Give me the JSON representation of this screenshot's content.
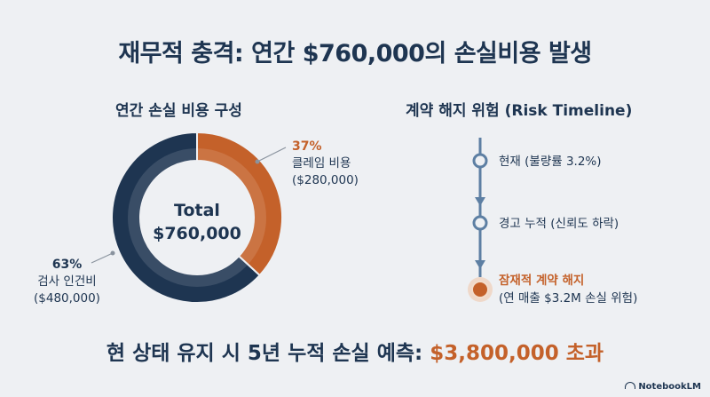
{
  "title": "재무적 충격: 연간 $760,000의 손실비용 발생",
  "left_heading": "연간 손실 비용 구성",
  "right_heading": "계약 해지 위험 (Risk Timeline)",
  "donut": {
    "center_label": "Total",
    "center_value": "$760,000",
    "claim": {
      "pct": "37%",
      "name": "클레임 비용",
      "amount": "($280,000)"
    },
    "inspection": {
      "pct": "63%",
      "name": "검사 인건비",
      "amount": "($480,000)"
    }
  },
  "chart_data": {
    "type": "pie",
    "title": "연간 손실 비용 구성",
    "total": 760000,
    "slices": [
      {
        "name": "클레임 비용",
        "value": 280000,
        "percent": 37,
        "color": "#c4612a"
      },
      {
        "name": "검사 인건비",
        "value": 480000,
        "percent": 63,
        "color": "#1e3551"
      }
    ]
  },
  "timeline": {
    "steps": [
      {
        "label": "현재 (불량률 3.2%)"
      },
      {
        "label": "경고 누적 (신뢰도 하락)"
      },
      {
        "label": "잠재적 계약 해지",
        "detail": "(연 매출 $3.2M 손실 위험)"
      }
    ]
  },
  "bottom": {
    "prefix": "현 상태 유지 시 5년 누적 손실 예측: ",
    "amount": "$3,800,000 초과"
  },
  "brand": "NotebookLM",
  "colors": {
    "navy": "#1e3551",
    "orange": "#c4612a",
    "steel": "#5d7fa3",
    "background": "#eef0f3"
  }
}
